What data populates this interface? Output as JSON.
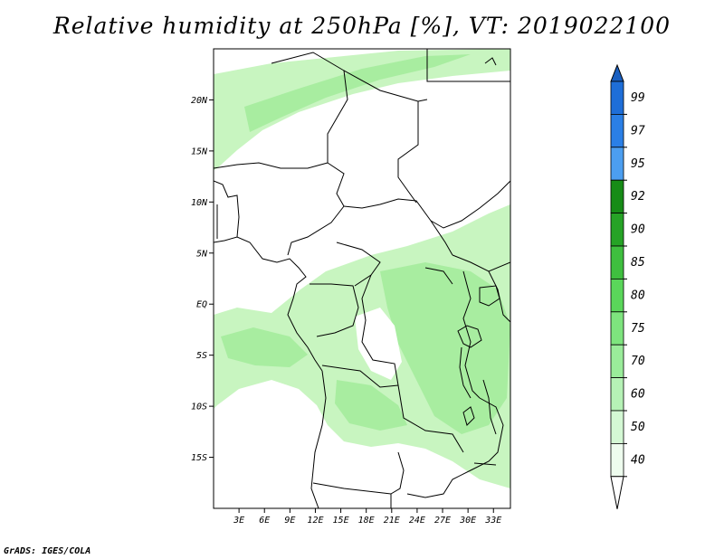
{
  "title": "Relative humidity at 250hPa [%], VT: 2019022100",
  "credit": "GrADS: IGES/COLA",
  "map": {
    "lon_range": [
      0,
      35
    ],
    "lat_range": [
      -20,
      25
    ],
    "lat_ticks": [
      {
        "value": 20,
        "label": "20N"
      },
      {
        "value": 15,
        "label": "15N"
      },
      {
        "value": 10,
        "label": "10N"
      },
      {
        "value": 5,
        "label": "5N"
      },
      {
        "value": 0,
        "label": "EQ"
      },
      {
        "value": -5,
        "label": "5S"
      },
      {
        "value": -10,
        "label": "10S"
      },
      {
        "value": -15,
        "label": "15S"
      }
    ],
    "lon_ticks": [
      {
        "value": 3,
        "label": "3E"
      },
      {
        "value": 6,
        "label": "6E"
      },
      {
        "value": 9,
        "label": "9E"
      },
      {
        "value": 12,
        "label": "12E"
      },
      {
        "value": 15,
        "label": "15E"
      },
      {
        "value": 18,
        "label": "18E"
      },
      {
        "value": 21,
        "label": "21E"
      },
      {
        "value": 24,
        "label": "24E"
      },
      {
        "value": 27,
        "label": "27E"
      },
      {
        "value": 30,
        "label": "30E"
      },
      {
        "value": 33,
        "label": "33E"
      }
    ]
  },
  "colorbar": {
    "levels": [
      {
        "label": "99",
        "color": "#1e6ed8"
      },
      {
        "label": "97",
        "color": "#2a7fe6"
      },
      {
        "label": "95",
        "color": "#4c9ef0"
      },
      {
        "label": "92",
        "color": "#178c17"
      },
      {
        "label": "90",
        "color": "#26a326"
      },
      {
        "label": "85",
        "color": "#3fbf3f"
      },
      {
        "label": "80",
        "color": "#5ad65a"
      },
      {
        "label": "75",
        "color": "#7ee47e"
      },
      {
        "label": "70",
        "color": "#9aec9a"
      },
      {
        "label": "60",
        "color": "#b6f2b6"
      },
      {
        "label": "50",
        "color": "#d4f8d4"
      },
      {
        "label": "40",
        "color": "#eefcee"
      }
    ],
    "top_cap_color": "#1a5fc0",
    "bottom_cap_color": "#ffffff"
  },
  "colors": {
    "light_green": "#c8f5c0",
    "mid_green": "#a8eda0",
    "border": "#000000"
  }
}
